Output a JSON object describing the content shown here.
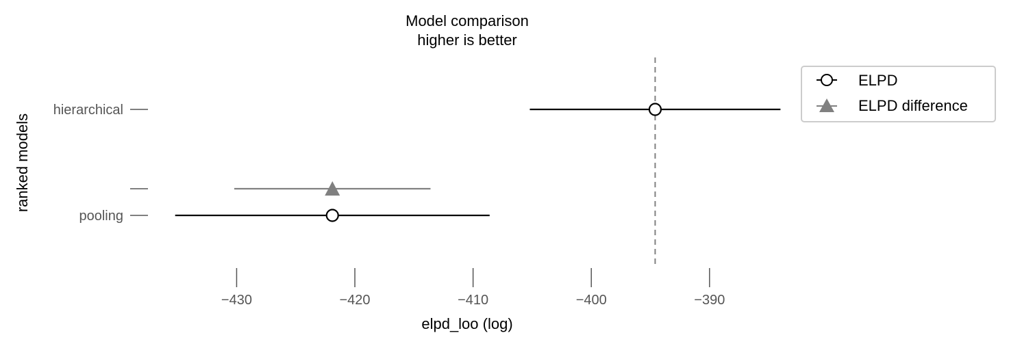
{
  "chart_data": {
    "type": "scatter",
    "title": "Model comparison",
    "subtitle": "higher is better",
    "xlabel": "elpd_loo (log)",
    "ylabel": "ranked models",
    "xlim": [
      -437.5,
      -383.5
    ],
    "xticks": [
      -430,
      -420,
      -410,
      -400,
      -390
    ],
    "xtick_labels": [
      "−430",
      "−420",
      "−410",
      "−400",
      "−390"
    ],
    "reference_line": {
      "x": -394.6,
      "style": "dashed",
      "color": "#808080"
    },
    "models": [
      {
        "label": "hierarchical",
        "elpd": -394.6,
        "lower": -405.2,
        "upper": -384.0
      },
      {
        "label": "pooling",
        "elpd": -421.9,
        "lower": -435.2,
        "upper": -408.6
      }
    ],
    "difference": {
      "label": "",
      "value": -421.9,
      "lower": -430.2,
      "upper": -413.6
    },
    "legend": {
      "placement": "top-right",
      "entries": [
        {
          "label": "ELPD",
          "marker": "open-circle",
          "color": "#000000"
        },
        {
          "label": "ELPD difference",
          "marker": "triangle",
          "color": "#808080"
        }
      ]
    },
    "grid": false
  }
}
